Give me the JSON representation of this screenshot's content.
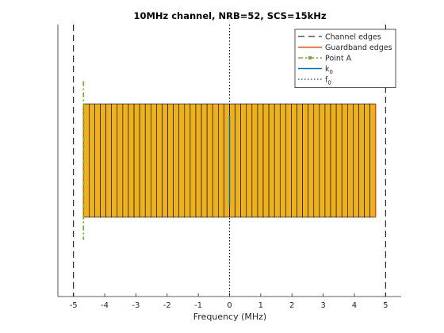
{
  "chart_data": {
    "type": "bar",
    "title": "10MHz channel, NRB=52, SCS=15kHz",
    "xlabel": "Frequency (MHz)",
    "ylabel": "",
    "xlim": [
      -5.5,
      5.5
    ],
    "ylim": [
      -1.2,
      1.2
    ],
    "x_ticks": [
      "-5",
      "-4",
      "-3",
      "-2",
      "-1",
      "0",
      "1",
      "2",
      "3",
      "4",
      "5"
    ],
    "x_tick_values": [
      -5,
      -4,
      -3,
      -2,
      -1,
      0,
      1,
      2,
      3,
      4,
      5
    ],
    "grid": false,
    "resource_blocks": {
      "count": 52,
      "start_mhz": -4.68,
      "width_mhz": 0.18,
      "y_bottom": -0.5,
      "y_top": 0.5,
      "fill_color": "#EDB120",
      "edge_color": "#000000"
    },
    "lines": {
      "channel_edges": {
        "x": [
          -5,
          5
        ],
        "color": "#000000",
        "style": "dashed"
      },
      "guardband_edges": {
        "x": [
          -4.68,
          4.68
        ],
        "y": [
          -0.5,
          0.5
        ],
        "color": "#D95319",
        "style": "solid"
      },
      "point_a": {
        "x": -4.68,
        "y": [
          -0.7,
          0.7
        ],
        "color": "#77AC30",
        "style": "dash-dot"
      },
      "k0": {
        "x": 0,
        "y": [
          -0.4,
          0.4
        ],
        "color": "#0072BD",
        "style": "solid"
      },
      "f0": {
        "x": 0,
        "color": "#000000",
        "style": "dotted"
      }
    },
    "legend": {
      "location": "top-right",
      "entries": [
        {
          "label": "Channel edges",
          "sub": "",
          "color": "#000000",
          "style": "dashed"
        },
        {
          "label": "Guardband edges",
          "sub": "",
          "color": "#D95319",
          "style": "solid"
        },
        {
          "label": "Point A",
          "sub": "",
          "color": "#77AC30",
          "style": "dash-dot-marker"
        },
        {
          "label": "k",
          "sub": "0",
          "color": "#0072BD",
          "style": "solid"
        },
        {
          "label": "f",
          "sub": "0",
          "color": "#000000",
          "style": "dotted"
        }
      ]
    }
  }
}
